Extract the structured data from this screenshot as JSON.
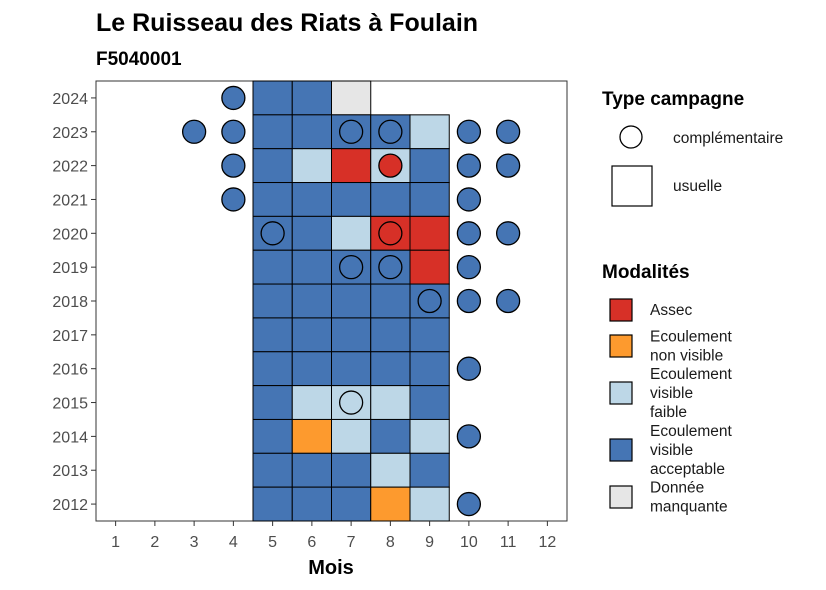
{
  "chart_data": {
    "type": "heatmap",
    "title": "Le Ruisseau des Riats à Foulain",
    "subtitle": "F5040001",
    "xlabel": "Mois",
    "ylabel": "",
    "x_ticks": [
      "1",
      "2",
      "3",
      "4",
      "5",
      "6",
      "7",
      "8",
      "9",
      "10",
      "11",
      "12"
    ],
    "y_ticks": [
      "2012",
      "2013",
      "2014",
      "2015",
      "2016",
      "2017",
      "2018",
      "2019",
      "2020",
      "2021",
      "2022",
      "2023",
      "2024"
    ],
    "xlim": [
      0.5,
      12.5
    ],
    "ylim": [
      2011.5,
      2024.5
    ],
    "grid": false,
    "legend_position": "right",
    "legends": {
      "campaign": {
        "title": "Type campagne",
        "items": [
          {
            "key": "complementaire",
            "label": "complémentaire",
            "shape": "circle"
          },
          {
            "key": "usuelle",
            "label": "usuelle",
            "shape": "square"
          }
        ]
      },
      "modalities": {
        "title": "Modalités",
        "items": [
          {
            "key": "assec",
            "label": [
              "Assec"
            ],
            "color": "#d73027"
          },
          {
            "key": "nonvisible",
            "label": [
              "Ecoulement",
              "non visible"
            ],
            "color": "#fd9a2e"
          },
          {
            "key": "faible",
            "label": [
              "Ecoulement",
              "visible",
              "faible"
            ],
            "color": "#bdd7e7"
          },
          {
            "key": "acceptable",
            "label": [
              "Ecoulement",
              "visible",
              "acceptable"
            ],
            "color": "#4575b4"
          },
          {
            "key": "manquante",
            "label": [
              "Donnée",
              "manquante"
            ],
            "color": "#e6e6e6"
          }
        ]
      }
    },
    "colors": {
      "assec": "#d73027",
      "nonvisible": "#fd9a2e",
      "faible": "#bdd7e7",
      "acceptable": "#4575b4",
      "manquante": "#e6e6e6"
    },
    "usuelle_observations": [
      {
        "year": 2024,
        "month": 5,
        "m": "acceptable"
      },
      {
        "year": 2024,
        "month": 6,
        "m": "acceptable"
      },
      {
        "year": 2024,
        "month": 7,
        "m": "manquante"
      },
      {
        "year": 2023,
        "month": 5,
        "m": "acceptable"
      },
      {
        "year": 2023,
        "month": 6,
        "m": "acceptable"
      },
      {
        "year": 2023,
        "month": 7,
        "m": "acceptable"
      },
      {
        "year": 2023,
        "month": 8,
        "m": "acceptable"
      },
      {
        "year": 2023,
        "month": 9,
        "m": "faible"
      },
      {
        "year": 2022,
        "month": 5,
        "m": "acceptable"
      },
      {
        "year": 2022,
        "month": 6,
        "m": "faible"
      },
      {
        "year": 2022,
        "month": 7,
        "m": "assec"
      },
      {
        "year": 2022,
        "month": 8,
        "m": "faible"
      },
      {
        "year": 2022,
        "month": 9,
        "m": "acceptable"
      },
      {
        "year": 2021,
        "month": 5,
        "m": "acceptable"
      },
      {
        "year": 2021,
        "month": 6,
        "m": "acceptable"
      },
      {
        "year": 2021,
        "month": 7,
        "m": "acceptable"
      },
      {
        "year": 2021,
        "month": 8,
        "m": "acceptable"
      },
      {
        "year": 2021,
        "month": 9,
        "m": "acceptable"
      },
      {
        "year": 2020,
        "month": 5,
        "m": "acceptable"
      },
      {
        "year": 2020,
        "month": 6,
        "m": "acceptable"
      },
      {
        "year": 2020,
        "month": 7,
        "m": "faible"
      },
      {
        "year": 2020,
        "month": 8,
        "m": "assec"
      },
      {
        "year": 2020,
        "month": 9,
        "m": "assec"
      },
      {
        "year": 2019,
        "month": 5,
        "m": "acceptable"
      },
      {
        "year": 2019,
        "month": 6,
        "m": "acceptable"
      },
      {
        "year": 2019,
        "month": 7,
        "m": "acceptable"
      },
      {
        "year": 2019,
        "month": 8,
        "m": "acceptable"
      },
      {
        "year": 2019,
        "month": 9,
        "m": "assec"
      },
      {
        "year": 2018,
        "month": 5,
        "m": "acceptable"
      },
      {
        "year": 2018,
        "month": 6,
        "m": "acceptable"
      },
      {
        "year": 2018,
        "month": 7,
        "m": "acceptable"
      },
      {
        "year": 2018,
        "month": 8,
        "m": "acceptable"
      },
      {
        "year": 2018,
        "month": 9,
        "m": "acceptable"
      },
      {
        "year": 2017,
        "month": 5,
        "m": "acceptable"
      },
      {
        "year": 2017,
        "month": 6,
        "m": "acceptable"
      },
      {
        "year": 2017,
        "month": 7,
        "m": "acceptable"
      },
      {
        "year": 2017,
        "month": 8,
        "m": "acceptable"
      },
      {
        "year": 2017,
        "month": 9,
        "m": "acceptable"
      },
      {
        "year": 2016,
        "month": 5,
        "m": "acceptable"
      },
      {
        "year": 2016,
        "month": 6,
        "m": "acceptable"
      },
      {
        "year": 2016,
        "month": 7,
        "m": "acceptable"
      },
      {
        "year": 2016,
        "month": 8,
        "m": "acceptable"
      },
      {
        "year": 2016,
        "month": 9,
        "m": "acceptable"
      },
      {
        "year": 2015,
        "month": 5,
        "m": "acceptable"
      },
      {
        "year": 2015,
        "month": 6,
        "m": "faible"
      },
      {
        "year": 2015,
        "month": 7,
        "m": "faible"
      },
      {
        "year": 2015,
        "month": 8,
        "m": "faible"
      },
      {
        "year": 2015,
        "month": 9,
        "m": "acceptable"
      },
      {
        "year": 2014,
        "month": 5,
        "m": "acceptable"
      },
      {
        "year": 2014,
        "month": 6,
        "m": "nonvisible"
      },
      {
        "year": 2014,
        "month": 7,
        "m": "faible"
      },
      {
        "year": 2014,
        "month": 8,
        "m": "acceptable"
      },
      {
        "year": 2014,
        "month": 9,
        "m": "faible"
      },
      {
        "year": 2013,
        "month": 5,
        "m": "acceptable"
      },
      {
        "year": 2013,
        "month": 6,
        "m": "acceptable"
      },
      {
        "year": 2013,
        "month": 7,
        "m": "acceptable"
      },
      {
        "year": 2013,
        "month": 8,
        "m": "faible"
      },
      {
        "year": 2013,
        "month": 9,
        "m": "acceptable"
      },
      {
        "year": 2012,
        "month": 5,
        "m": "acceptable"
      },
      {
        "year": 2012,
        "month": 6,
        "m": "acceptable"
      },
      {
        "year": 2012,
        "month": 7,
        "m": "acceptable"
      },
      {
        "year": 2012,
        "month": 8,
        "m": "nonvisible"
      },
      {
        "year": 2012,
        "month": 9,
        "m": "faible"
      }
    ],
    "complementaire_observations": [
      {
        "year": 2024,
        "month": 4,
        "m": "acceptable"
      },
      {
        "year": 2023,
        "month": 3,
        "m": "acceptable"
      },
      {
        "year": 2023,
        "month": 4,
        "m": "acceptable"
      },
      {
        "year": 2023,
        "month": 7,
        "m": "acceptable"
      },
      {
        "year": 2023,
        "month": 8,
        "m": "acceptable"
      },
      {
        "year": 2023,
        "month": 10,
        "m": "acceptable"
      },
      {
        "year": 2023,
        "month": 11,
        "m": "acceptable"
      },
      {
        "year": 2022,
        "month": 4,
        "m": "acceptable"
      },
      {
        "year": 2022,
        "month": 8,
        "m": "assec"
      },
      {
        "year": 2022,
        "month": 10,
        "m": "acceptable"
      },
      {
        "year": 2022,
        "month": 11,
        "m": "acceptable"
      },
      {
        "year": 2021,
        "month": 4,
        "m": "acceptable"
      },
      {
        "year": 2021,
        "month": 10,
        "m": "acceptable"
      },
      {
        "year": 2020,
        "month": 5,
        "m": "acceptable"
      },
      {
        "year": 2020,
        "month": 8,
        "m": "assec"
      },
      {
        "year": 2020,
        "month": 10,
        "m": "acceptable"
      },
      {
        "year": 2020,
        "month": 11,
        "m": "acceptable"
      },
      {
        "year": 2019,
        "month": 7,
        "m": "acceptable"
      },
      {
        "year": 2019,
        "month": 8,
        "m": "acceptable"
      },
      {
        "year": 2019,
        "month": 10,
        "m": "acceptable"
      },
      {
        "year": 2018,
        "month": 9,
        "m": "acceptable"
      },
      {
        "year": 2018,
        "month": 10,
        "m": "acceptable"
      },
      {
        "year": 2018,
        "month": 11,
        "m": "acceptable"
      },
      {
        "year": 2016,
        "month": 10,
        "m": "acceptable"
      },
      {
        "year": 2015,
        "month": 7,
        "m": "faible"
      },
      {
        "year": 2014,
        "month": 10,
        "m": "acceptable"
      },
      {
        "year": 2012,
        "month": 10,
        "m": "acceptable"
      }
    ]
  }
}
